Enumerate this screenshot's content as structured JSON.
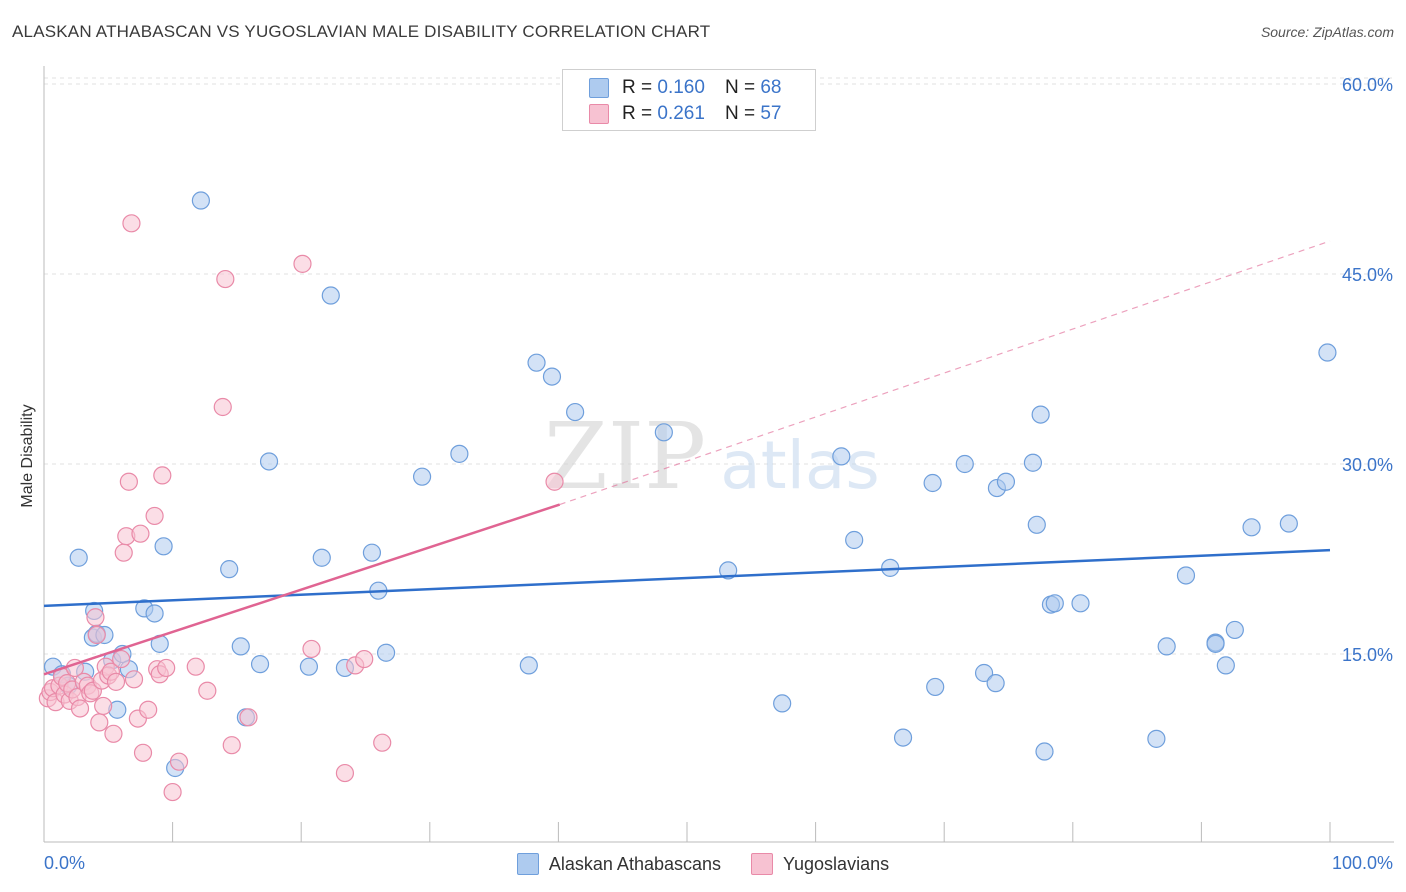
{
  "header": {
    "title": "ALASKAN ATHABASCAN VS YUGOSLAVIAN MALE DISABILITY CORRELATION CHART",
    "source": "Source: ZipAtlas.com"
  },
  "watermark": {
    "zip": "ZIP",
    "atlas": "atlas"
  },
  "legend": {
    "series": [
      {
        "name": "Alaskan Athabascans",
        "r_label": "R =",
        "r_value": "0.160",
        "n_label": "N =",
        "n_value": "68"
      },
      {
        "name": "Yugoslavians",
        "r_label": "R =",
        "r_value": "0.261",
        "n_label": "N =",
        "n_value": "57"
      }
    ]
  },
  "colors": {
    "blue_fill": "#aecbef",
    "blue_stroke": "#6f9fdc",
    "blue_line": "#2f6fcb",
    "pink_fill": "#f7c2d2",
    "pink_stroke": "#e98aa8",
    "pink_line": "#e06492",
    "axis_text": "#3b74c9",
    "grid": "#e2e2e2"
  },
  "chart_data": {
    "type": "scatter",
    "title": "ALASKAN ATHABASCAN VS YUGOSLAVIAN MALE DISABILITY CORRELATION CHART",
    "xlabel": "",
    "ylabel": "Male Disability",
    "xlim": [
      0,
      100
    ],
    "ylim": [
      0,
      61
    ],
    "x_tick_labels": [
      "0.0%",
      "100.0%"
    ],
    "y_ticks": [
      15,
      30,
      45,
      60
    ],
    "y_tick_labels": [
      "15.0%",
      "30.0%",
      "45.0%",
      "60.0%"
    ],
    "grid": true,
    "legend_position": "top-center",
    "series": [
      {
        "name": "Alaskan Athabascans",
        "color": "blue",
        "r": 0.16,
        "n": 68,
        "trend": {
          "x": [
            0,
            100
          ],
          "y": [
            18.8,
            23.2
          ],
          "dashed_extension": false
        },
        "points": [
          [
            0.7,
            14.0
          ],
          [
            1.4,
            13.4
          ],
          [
            1.9,
            12.5
          ],
          [
            2.7,
            22.6
          ],
          [
            3.2,
            13.6
          ],
          [
            3.8,
            16.3
          ],
          [
            3.9,
            18.4
          ],
          [
            4.1,
            16.6
          ],
          [
            4.7,
            16.5
          ],
          [
            5.3,
            14.5
          ],
          [
            5.7,
            10.6
          ],
          [
            6.1,
            15.0
          ],
          [
            6.6,
            13.8
          ],
          [
            7.8,
            18.6
          ],
          [
            8.6,
            18.2
          ],
          [
            9.0,
            15.8
          ],
          [
            9.3,
            23.5
          ],
          [
            10.2,
            6.0
          ],
          [
            12.2,
            50.8
          ],
          [
            14.4,
            21.7
          ],
          [
            15.3,
            15.6
          ],
          [
            15.7,
            10.0
          ],
          [
            16.8,
            14.2
          ],
          [
            17.5,
            30.2
          ],
          [
            20.6,
            14.0
          ],
          [
            21.6,
            22.6
          ],
          [
            22.3,
            43.3
          ],
          [
            23.4,
            13.9
          ],
          [
            25.5,
            23.0
          ],
          [
            26.0,
            20.0
          ],
          [
            26.6,
            15.1
          ],
          [
            29.4,
            29.0
          ],
          [
            32.3,
            30.8
          ],
          [
            37.7,
            14.1
          ],
          [
            38.3,
            38.0
          ],
          [
            39.5,
            36.9
          ],
          [
            41.3,
            34.1
          ],
          [
            48.2,
            32.5
          ],
          [
            53.2,
            21.6
          ],
          [
            57.4,
            11.1
          ],
          [
            62.0,
            30.6
          ],
          [
            63.0,
            24.0
          ],
          [
            65.8,
            21.8
          ],
          [
            66.8,
            8.4
          ],
          [
            69.1,
            28.5
          ],
          [
            69.3,
            12.4
          ],
          [
            71.6,
            30.0
          ],
          [
            73.1,
            13.5
          ],
          [
            74.0,
            12.7
          ],
          [
            74.1,
            28.1
          ],
          [
            74.8,
            28.6
          ],
          [
            76.9,
            30.1
          ],
          [
            77.2,
            25.2
          ],
          [
            77.5,
            33.9
          ],
          [
            77.8,
            7.3
          ],
          [
            78.3,
            18.9
          ],
          [
            78.6,
            19.0
          ],
          [
            80.6,
            19.0
          ],
          [
            87.3,
            15.6
          ],
          [
            86.5,
            8.3
          ],
          [
            88.8,
            21.2
          ],
          [
            91.1,
            15.9
          ],
          [
            91.1,
            15.8
          ],
          [
            91.9,
            14.1
          ],
          [
            92.6,
            16.9
          ],
          [
            93.9,
            25.0
          ],
          [
            96.8,
            25.3
          ],
          [
            99.8,
            38.8
          ]
        ]
      },
      {
        "name": "Yugoslavians",
        "color": "pink",
        "r": 0.261,
        "n": 57,
        "trend": {
          "x": [
            0,
            40.1
          ],
          "y": [
            13.4,
            26.8
          ],
          "dashed_x": [
            40.1,
            100
          ],
          "dashed_y": [
            26.8,
            47.6
          ],
          "dashed_extension": true
        },
        "points": [
          [
            0.3,
            11.5
          ],
          [
            0.5,
            12.0
          ],
          [
            0.7,
            12.3
          ],
          [
            0.9,
            11.2
          ],
          [
            1.2,
            12.5
          ],
          [
            1.4,
            13.2
          ],
          [
            1.6,
            11.8
          ],
          [
            1.8,
            12.7
          ],
          [
            2.0,
            11.3
          ],
          [
            2.2,
            12.2
          ],
          [
            2.4,
            13.9
          ],
          [
            2.6,
            11.6
          ],
          [
            2.8,
            10.7
          ],
          [
            3.1,
            12.8
          ],
          [
            3.4,
            12.5
          ],
          [
            3.6,
            11.9
          ],
          [
            3.8,
            12.1
          ],
          [
            4.0,
            17.9
          ],
          [
            4.1,
            16.5
          ],
          [
            4.3,
            9.6
          ],
          [
            4.5,
            12.9
          ],
          [
            4.6,
            10.9
          ],
          [
            4.8,
            14.0
          ],
          [
            5.0,
            13.3
          ],
          [
            5.2,
            13.6
          ],
          [
            5.4,
            8.7
          ],
          [
            5.6,
            12.8
          ],
          [
            6.0,
            14.6
          ],
          [
            6.2,
            23.0
          ],
          [
            6.4,
            24.3
          ],
          [
            6.6,
            28.6
          ],
          [
            6.8,
            49.0
          ],
          [
            7.0,
            13.0
          ],
          [
            7.3,
            9.9
          ],
          [
            7.5,
            24.5
          ],
          [
            7.7,
            7.2
          ],
          [
            8.1,
            10.6
          ],
          [
            8.6,
            25.9
          ],
          [
            8.8,
            13.8
          ],
          [
            9.0,
            13.4
          ],
          [
            9.2,
            29.1
          ],
          [
            9.5,
            13.9
          ],
          [
            10.0,
            4.1
          ],
          [
            10.5,
            6.5
          ],
          [
            11.8,
            14.0
          ],
          [
            12.7,
            12.1
          ],
          [
            13.9,
            34.5
          ],
          [
            14.1,
            44.6
          ],
          [
            14.6,
            7.8
          ],
          [
            15.9,
            10.0
          ],
          [
            20.1,
            45.8
          ],
          [
            20.8,
            15.4
          ],
          [
            23.4,
            5.6
          ],
          [
            24.2,
            14.1
          ],
          [
            24.9,
            14.6
          ],
          [
            26.3,
            8.0
          ],
          [
            39.7,
            28.6
          ]
        ]
      }
    ]
  }
}
